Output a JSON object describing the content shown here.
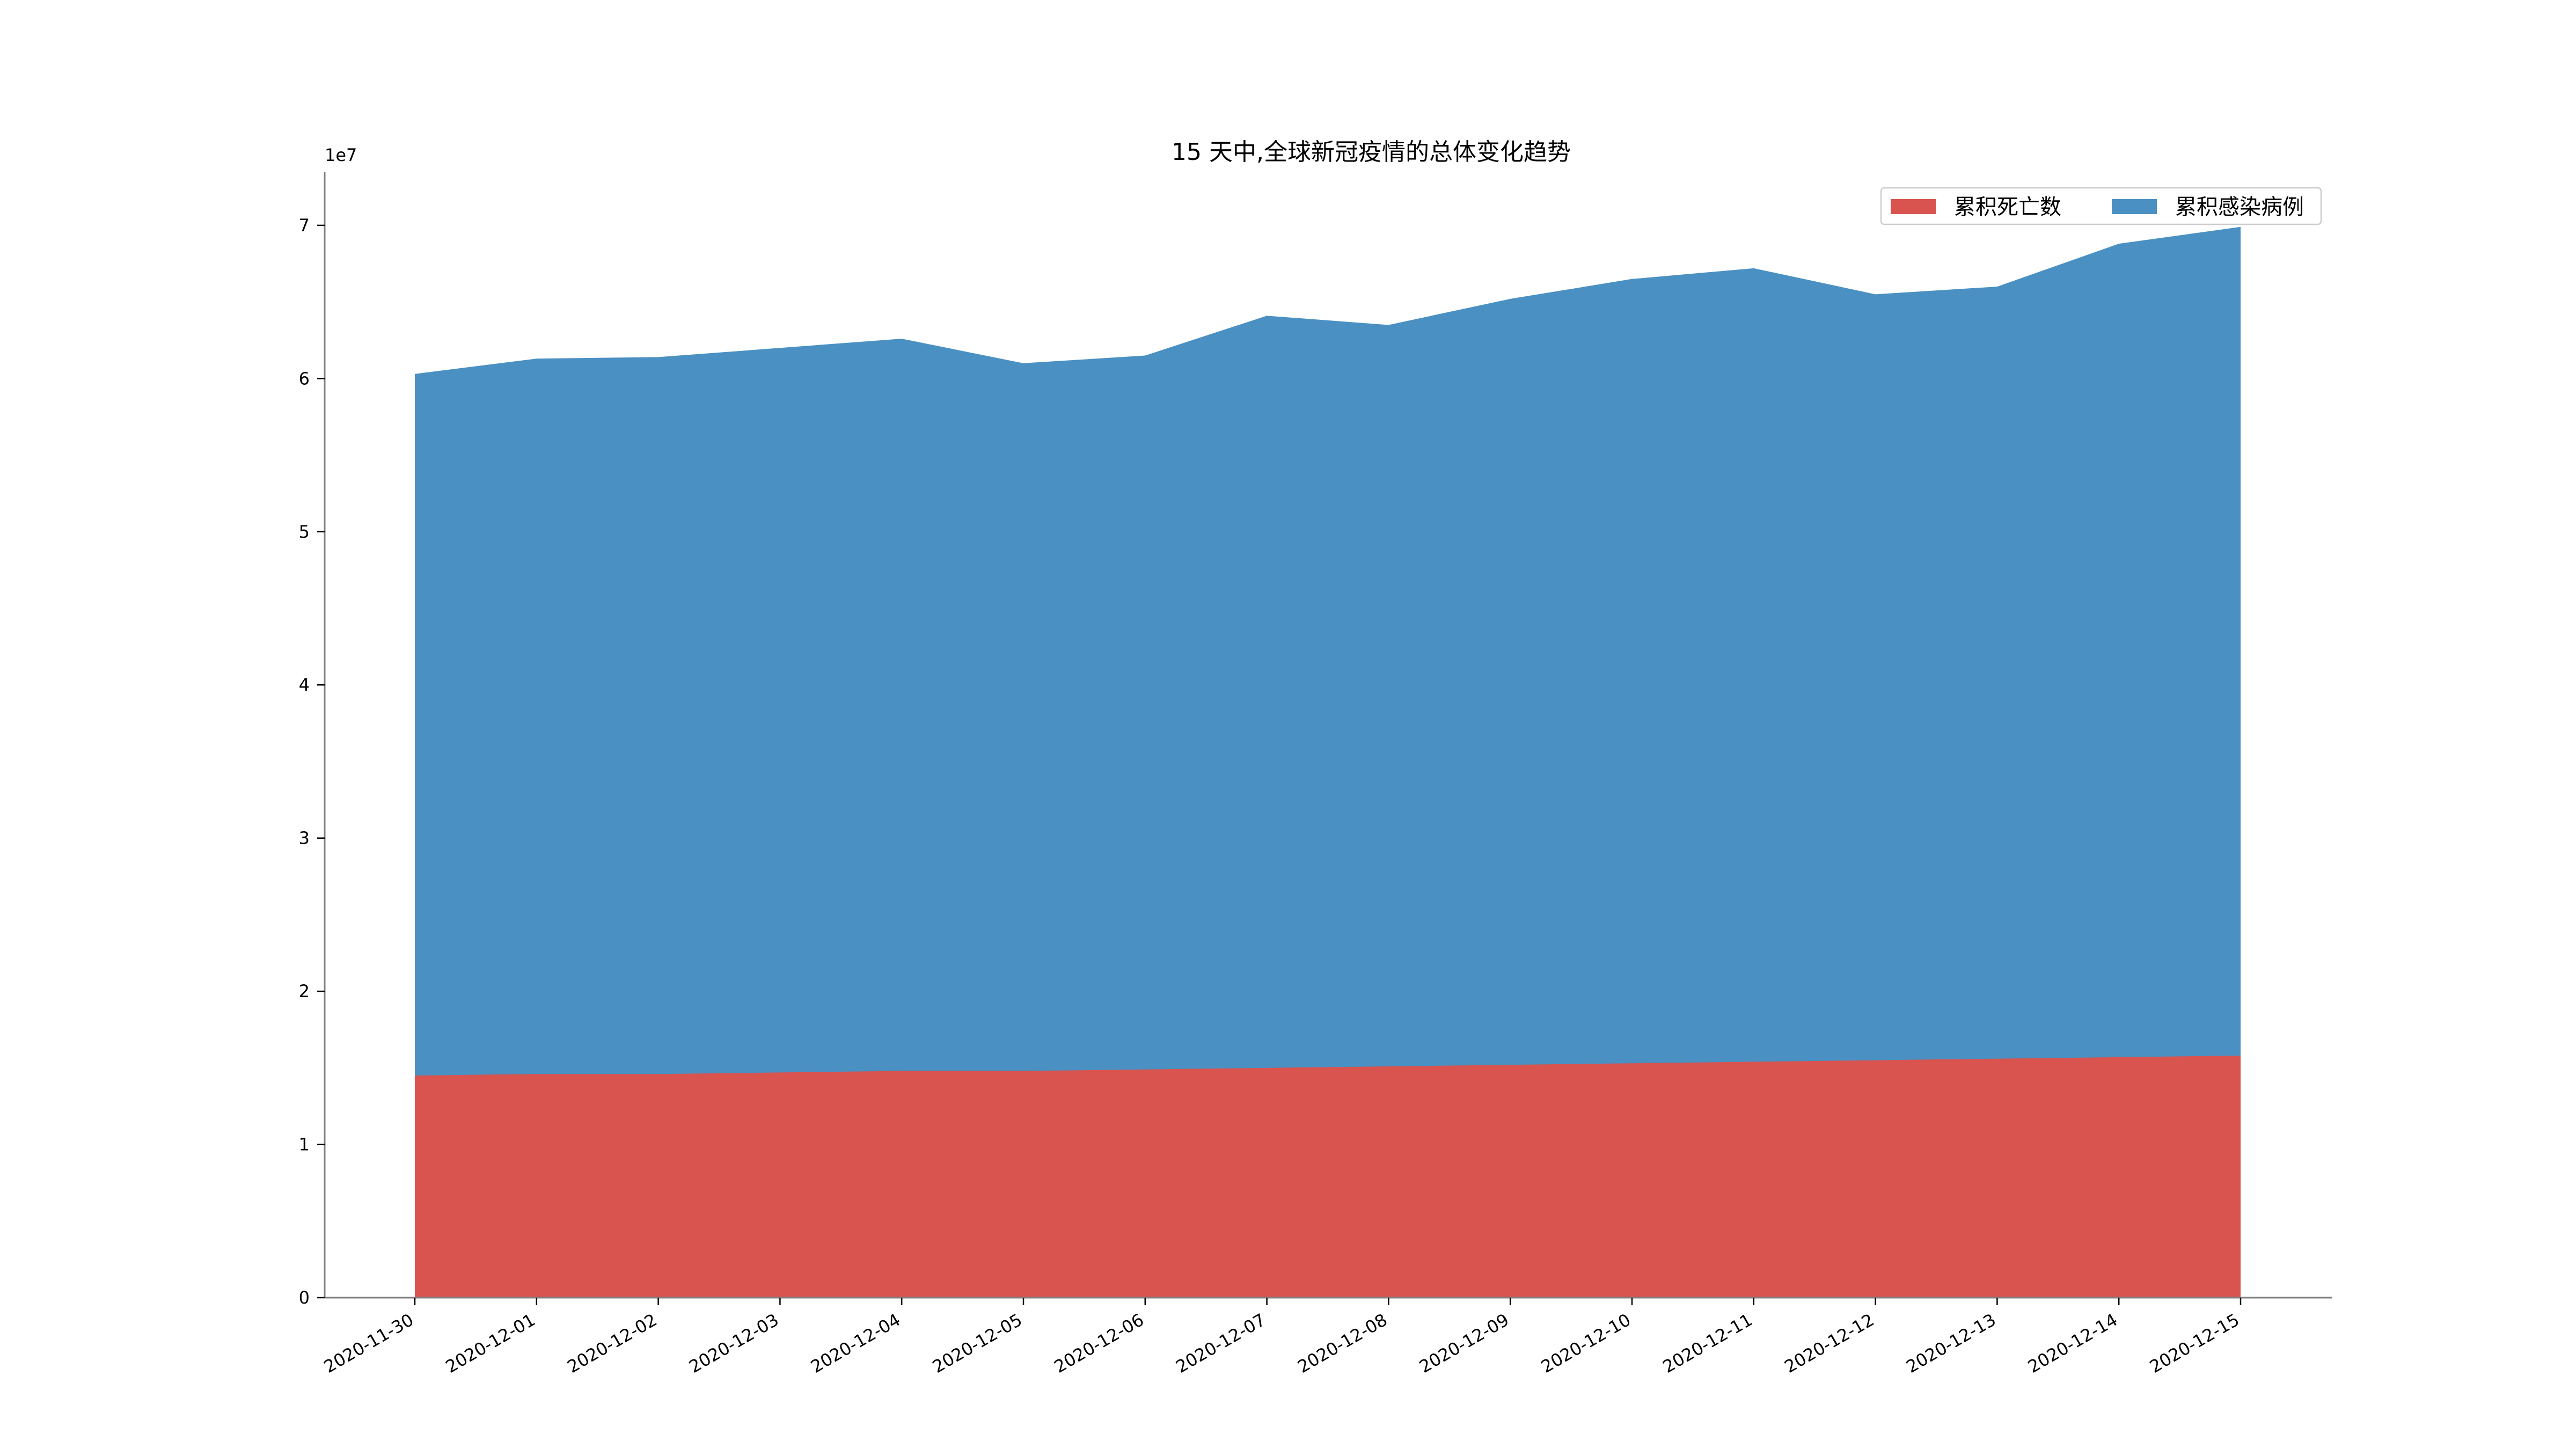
{
  "chart_data": {
    "type": "area",
    "title": "15 天中,全球新冠疫情的总体变化趋势",
    "xlabel": "",
    "ylabel": "",
    "y_offset_label": "1e7",
    "x": [
      "2020-11-30",
      "2020-12-01",
      "2020-12-02",
      "2020-12-03",
      "2020-12-04",
      "2020-12-05",
      "2020-12-06",
      "2020-12-07",
      "2020-12-08",
      "2020-12-09",
      "2020-12-10",
      "2020-12-11",
      "2020-12-12",
      "2020-12-13",
      "2020-12-14",
      "2020-12-15"
    ],
    "yticks": [
      0,
      1,
      2,
      3,
      4,
      5,
      6,
      7
    ],
    "ylim": [
      0,
      7.35
    ],
    "y_unit_scale": 10000000,
    "stacked": false,
    "grid": false,
    "legend_placement": "top-right",
    "series": [
      {
        "name": "累积死亡数",
        "color": "#d9534f",
        "values": [
          1.45,
          1.46,
          1.46,
          1.47,
          1.48,
          1.48,
          1.49,
          1.5,
          1.51,
          1.52,
          1.53,
          1.54,
          1.55,
          1.56,
          1.57,
          1.58
        ]
      },
      {
        "name": "累积感染病例",
        "color": "#4a90c2",
        "values": [
          6.03,
          6.13,
          6.14,
          6.2,
          6.26,
          6.1,
          6.15,
          6.41,
          6.35,
          6.52,
          6.65,
          6.72,
          6.55,
          6.6,
          6.88,
          6.99
        ]
      }
    ]
  }
}
